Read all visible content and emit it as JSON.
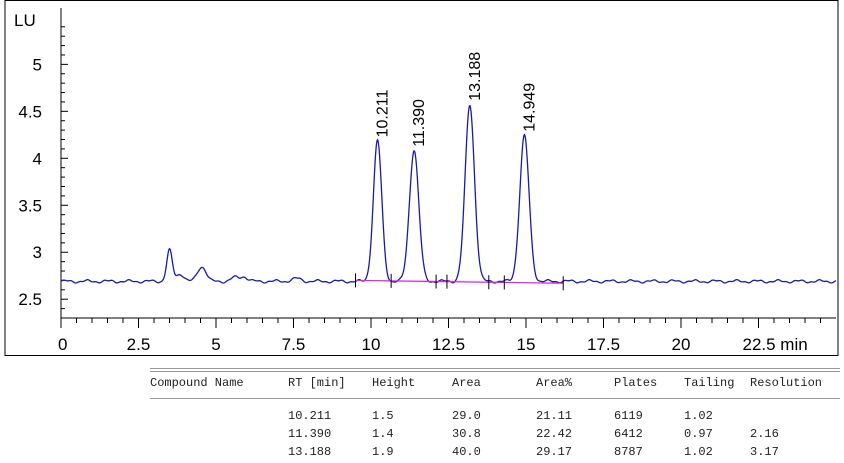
{
  "chart_data": {
    "type": "line",
    "title": "",
    "xlabel": "min",
    "ylabel": "LU",
    "xlim": [
      0,
      25
    ],
    "ylim": [
      2.3,
      5.6
    ],
    "x_ticks": [
      0,
      2.5,
      5,
      7.5,
      10,
      12.5,
      15,
      17.5,
      20,
      22.5
    ],
    "x_tick_labels": [
      "0",
      "2.5",
      "5",
      "7.5",
      "10",
      "12.5",
      "15",
      "17.5",
      "20",
      "22.5 min"
    ],
    "y_ticks": [
      2.5,
      3,
      3.5,
      4,
      4.5,
      5
    ],
    "y_tick_labels": [
      "2.5",
      "3",
      "3.5",
      "4",
      "4.5",
      "5"
    ],
    "y_unit_label": "LU",
    "grid": false,
    "baseline_level": 2.69,
    "series": [
      {
        "peaks": [
          {
            "x": 3.5,
            "height": 0.33,
            "width": 0.09
          },
          {
            "x": 3.85,
            "height": 0.08,
            "width": 0.12
          },
          {
            "x": 4.5,
            "height": 0.13,
            "width": 0.12
          },
          {
            "x": 4.65,
            "height": 0.06,
            "width": 0.1
          },
          {
            "x": 5.6,
            "height": 0.04,
            "width": 0.12
          },
          {
            "x": 5.9,
            "height": 0.05,
            "width": 0.12
          },
          {
            "x": 7.6,
            "height": 0.03,
            "width": 0.15
          },
          {
            "x": 10.211,
            "height": 1.5,
            "width": 0.135
          },
          {
            "x": 11.39,
            "height": 1.4,
            "width": 0.15
          },
          {
            "x": 13.188,
            "height": 1.88,
            "width": 0.15
          },
          {
            "x": 14.949,
            "height": 1.55,
            "width": 0.15
          }
        ]
      }
    ],
    "peak_labels": [
      {
        "x": 10.211,
        "y": 4.18,
        "text": "10.211"
      },
      {
        "x": 11.39,
        "y": 4.08,
        "text": "11.390"
      },
      {
        "x": 13.188,
        "y": 4.57,
        "text": "13.188"
      },
      {
        "x": 14.949,
        "y": 4.24,
        "text": "14.949"
      }
    ],
    "integration_baseline": {
      "x": [
        9.5,
        16.2
      ],
      "y": [
        2.7,
        2.67
      ],
      "color": "#e020e0"
    },
    "integration_marks": [
      9.5,
      10.65,
      12.1,
      12.45,
      13.8,
      14.3,
      16.2
    ],
    "line_color": "#1a1aa8"
  },
  "report": {
    "columns": [
      "Compound Name",
      "RT [min]",
      "Height",
      "Area",
      "Area%",
      "Plates",
      "Tailing",
      "Resolution"
    ],
    "rows": [
      [
        "",
        "10.211",
        "1.5",
        "29.0",
        "21.11",
        "6119",
        "1.02",
        ""
      ],
      [
        "",
        "11.390",
        "1.4",
        "30.8",
        "22.42",
        "6412",
        "0.97",
        "2.16"
      ],
      [
        "",
        "13.188",
        "1.9",
        "40.0",
        "29.17",
        "8787",
        "1.02",
        "3.17"
      ]
    ]
  }
}
